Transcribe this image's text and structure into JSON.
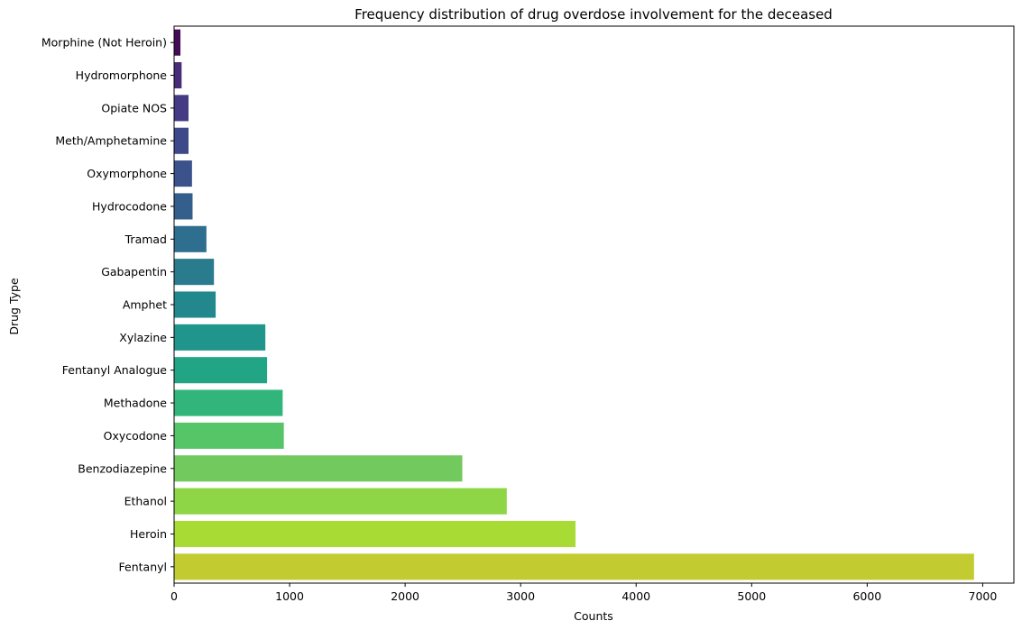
{
  "chart_data": {
    "type": "bar",
    "orientation": "horizontal",
    "title": "Frequency distribution of drug overdose involvement for the deceased",
    "xlabel": "Counts",
    "ylabel": "Drug Type",
    "xlim": [
      0,
      7270
    ],
    "xticks": [
      0,
      1000,
      2000,
      3000,
      4000,
      5000,
      6000,
      7000
    ],
    "grid": false,
    "categories": [
      "Morphine (Not Heroin)",
      "Hydromorphone",
      "Opiate NOS",
      "Meth/Amphetamine",
      "Oxymorphone",
      "Hydrocodone",
      "Tramad",
      "Gabapentin",
      "Amphet",
      "Xylazine",
      "Fentanyl Analogue",
      "Methadone",
      "Oxycodone",
      "Benzodiazepine",
      "Ethanol",
      "Heroin",
      "Fentanyl"
    ],
    "values": [
      55,
      65,
      125,
      125,
      155,
      160,
      280,
      345,
      360,
      790,
      805,
      940,
      950,
      2495,
      2880,
      3475,
      6925
    ],
    "colors": [
      "#440c57",
      "#472c7a",
      "#443b84",
      "#3e4989",
      "#3b528b",
      "#345f8d",
      "#2e6e8e",
      "#2a7b8e",
      "#22888d",
      "#1f958b",
      "#21a585",
      "#31b57b",
      "#55c568",
      "#72c95e",
      "#8ed645",
      "#a8db34",
      "#c2cc30"
    ]
  }
}
